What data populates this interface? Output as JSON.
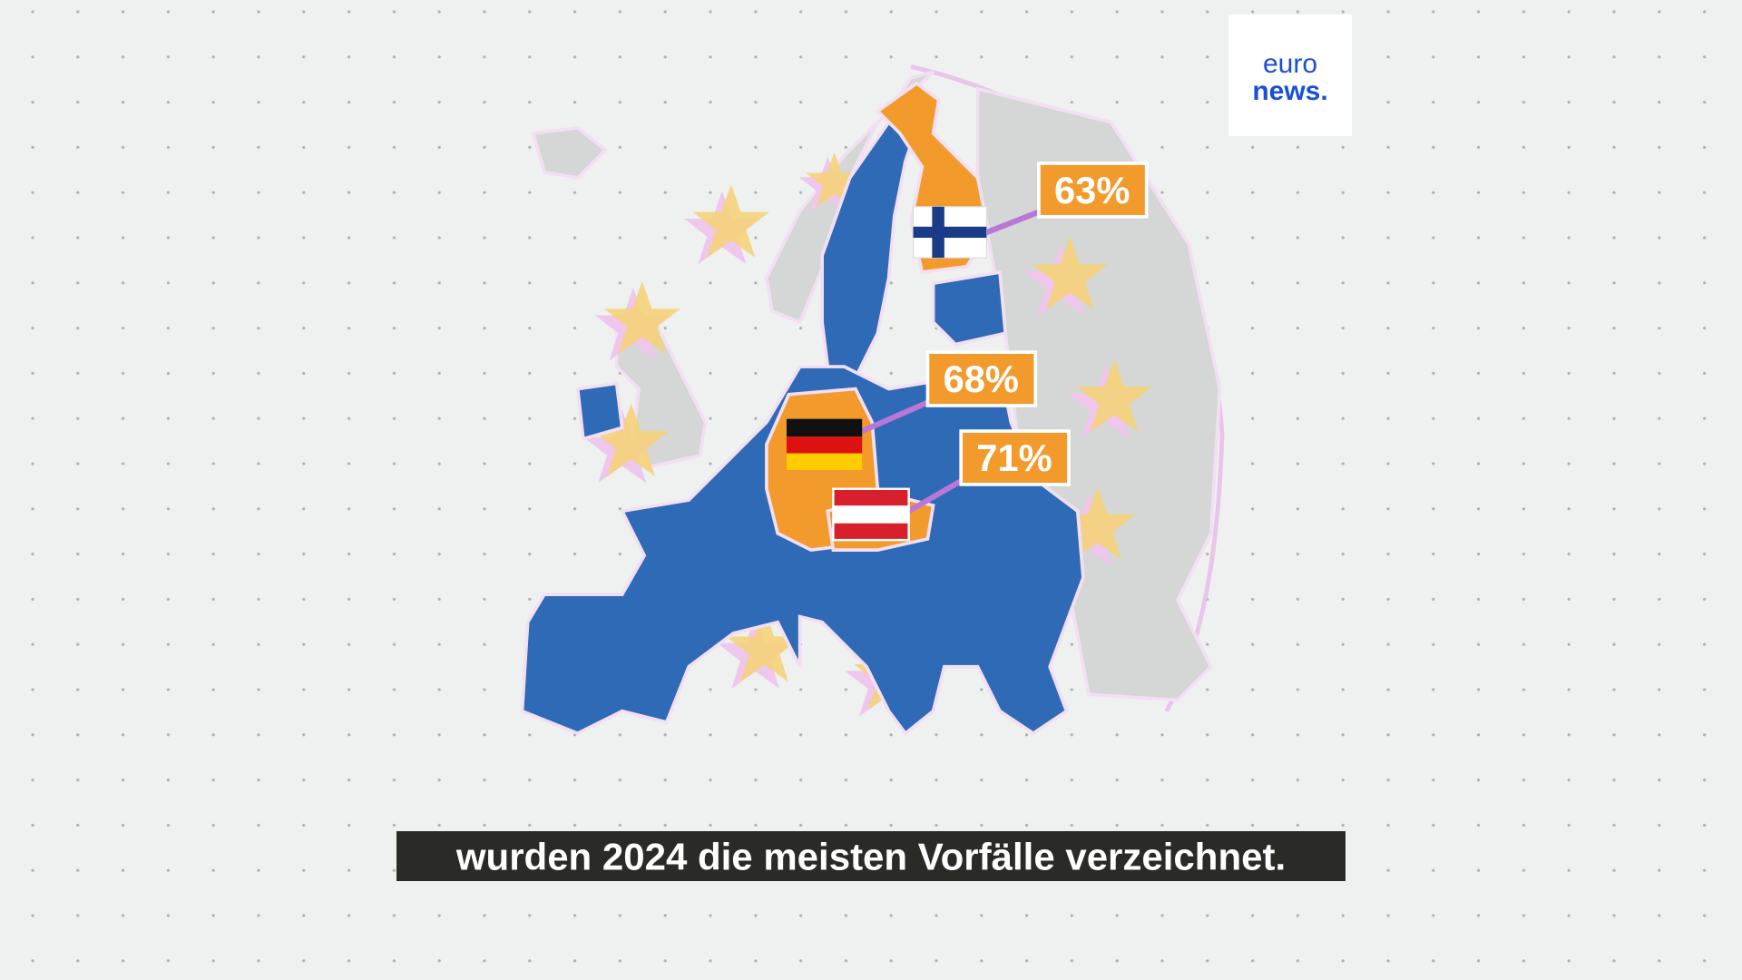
{
  "logo": {
    "line1": "euro",
    "line2": "news."
  },
  "callouts": [
    {
      "country": "Finland",
      "label": "63%"
    },
    {
      "country": "Germany",
      "label": "68%"
    },
    {
      "country": "Austria",
      "label": "71%"
    }
  ],
  "subtitle": "wurden 2024 die meisten Vorfälle verzeichnet."
}
